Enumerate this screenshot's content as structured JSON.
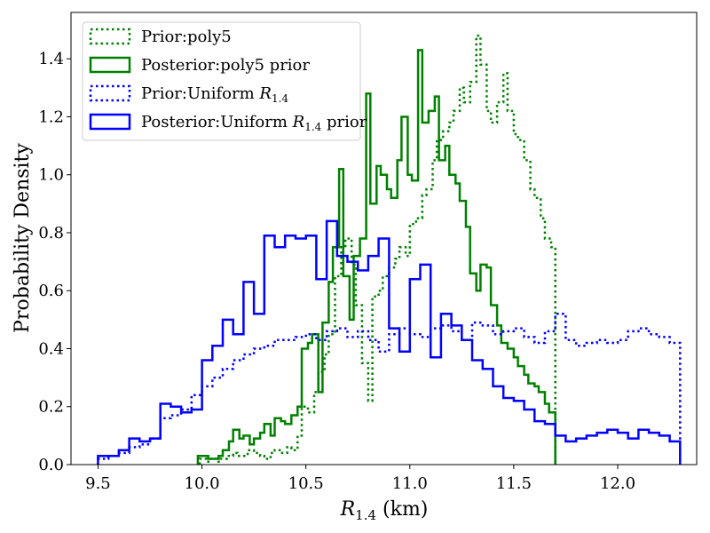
{
  "chart_data": {
    "type": "line",
    "chart_kind": "step histogram",
    "title": "",
    "xlabel": "R1.4 (km)",
    "ylabel": "Probability Density",
    "xlim": [
      9.37,
      12.38
    ],
    "ylim": [
      0.0,
      1.56
    ],
    "x_ticks": [
      9.5,
      10.0,
      10.5,
      11.0,
      11.5,
      12.0
    ],
    "x_tick_labels": [
      "9.5",
      "10.0",
      "10.5",
      "11.0",
      "11.5",
      "12.0"
    ],
    "y_ticks": [
      0.0,
      0.2,
      0.4,
      0.6,
      0.8,
      1.0,
      1.2,
      1.4
    ],
    "y_tick_labels": [
      "0.0",
      "0.2",
      "0.4",
      "0.6",
      "0.8",
      "1.0",
      "1.2",
      "1.4"
    ],
    "grid": false,
    "legend_position": "top-left",
    "series": [
      {
        "name": "Prior:poly5",
        "color": "#008000",
        "line_style": "dotted",
        "bin_edges": [
          9.99,
          10.02,
          10.04,
          10.07,
          10.09,
          10.12,
          10.15,
          10.17,
          10.2,
          10.22,
          10.25,
          10.28,
          10.3,
          10.33,
          10.35,
          10.38,
          10.41,
          10.43,
          10.46,
          10.48,
          10.51,
          10.54,
          10.56,
          10.59,
          10.61,
          10.64,
          10.67,
          10.69,
          10.72,
          10.74,
          10.77,
          10.8,
          10.82,
          10.85,
          10.87,
          10.9,
          10.93,
          10.95,
          10.98,
          11.0,
          11.03,
          11.06,
          11.08,
          11.11,
          11.13,
          11.16,
          11.19,
          11.21,
          11.24,
          11.26,
          11.29,
          11.32,
          11.34,
          11.37,
          11.39,
          11.42,
          11.45,
          11.47,
          11.5,
          11.52,
          11.55,
          11.58,
          11.6,
          11.63,
          11.65,
          11.68,
          11.7
        ],
        "values": [
          0.02,
          0.01,
          0.02,
          0.01,
          0.02,
          0.03,
          0.04,
          0.03,
          0.03,
          0.05,
          0.04,
          0.03,
          0.02,
          0.04,
          0.05,
          0.04,
          0.06,
          0.05,
          0.1,
          0.2,
          0.18,
          0.25,
          0.32,
          0.38,
          0.45,
          0.65,
          0.75,
          0.78,
          0.69,
          0.55,
          0.35,
          0.22,
          0.58,
          0.6,
          0.65,
          0.68,
          0.71,
          0.75,
          0.72,
          0.83,
          0.85,
          0.93,
          0.95,
          1.05,
          1.12,
          1.15,
          1.18,
          1.22,
          1.3,
          1.25,
          1.32,
          1.48,
          1.38,
          1.22,
          1.18,
          1.25,
          1.35,
          1.22,
          1.14,
          1.12,
          1.05,
          0.95,
          0.92,
          0.85,
          0.78,
          0.75
        ]
      },
      {
        "name": "Posterior:poly5 prior",
        "color": "#008000",
        "line_style": "solid",
        "bin_edges": [
          9.98,
          10.03,
          10.08,
          10.1,
          10.13,
          10.15,
          10.18,
          10.2,
          10.23,
          10.25,
          10.28,
          10.3,
          10.33,
          10.35,
          10.38,
          10.4,
          10.43,
          10.46,
          10.48,
          10.51,
          10.53,
          10.56,
          10.58,
          10.61,
          10.63,
          10.66,
          10.68,
          10.71,
          10.73,
          10.76,
          10.79,
          10.81,
          10.84,
          10.86,
          10.89,
          10.91,
          10.94,
          10.96,
          10.99,
          11.01,
          11.04,
          11.06,
          11.09,
          11.12,
          11.14,
          11.17,
          11.19,
          11.22,
          11.24,
          11.27,
          11.29,
          11.32,
          11.34,
          11.37,
          11.39,
          11.42,
          11.44,
          11.47,
          11.5,
          11.52,
          11.55,
          11.57,
          11.6,
          11.62,
          11.65,
          11.67,
          11.7
        ],
        "values": [
          0.03,
          0.02,
          0.03,
          0.05,
          0.08,
          0.12,
          0.09,
          0.1,
          0.07,
          0.09,
          0.11,
          0.14,
          0.1,
          0.16,
          0.15,
          0.14,
          0.17,
          0.2,
          0.4,
          0.42,
          0.45,
          0.25,
          0.49,
          0.63,
          0.75,
          1.02,
          0.65,
          0.5,
          0.72,
          0.78,
          1.28,
          0.9,
          1.03,
          1.0,
          0.95,
          0.92,
          1.05,
          1.2,
          1.0,
          0.98,
          1.43,
          1.18,
          1.22,
          1.27,
          1.05,
          1.1,
          1.0,
          0.97,
          0.91,
          0.82,
          0.66,
          0.6,
          0.69,
          0.68,
          0.55,
          0.48,
          0.42,
          0.4,
          0.37,
          0.34,
          0.31,
          0.28,
          0.27,
          0.25,
          0.21,
          0.18
        ]
      },
      {
        "name": "Prior:Uniform R1.4",
        "color": "#0000ff",
        "line_style": "dotted",
        "bin_edges": [
          9.5,
          9.55,
          9.6,
          9.65,
          9.7,
          9.75,
          9.8,
          9.85,
          9.9,
          9.95,
          10.0,
          10.05,
          10.1,
          10.15,
          10.2,
          10.25,
          10.3,
          10.35,
          10.4,
          10.45,
          10.5,
          10.55,
          10.6,
          10.65,
          10.7,
          10.75,
          10.8,
          10.85,
          10.9,
          10.95,
          11.0,
          11.05,
          11.1,
          11.15,
          11.2,
          11.25,
          11.3,
          11.35,
          11.4,
          11.45,
          11.5,
          11.55,
          11.6,
          11.65,
          11.7,
          11.75,
          11.8,
          11.85,
          11.9,
          11.95,
          12.0,
          12.05,
          12.1,
          12.15,
          12.2,
          12.25,
          12.3
        ],
        "values": [
          0.02,
          0.03,
          0.04,
          0.06,
          0.07,
          0.09,
          0.16,
          0.17,
          0.19,
          0.24,
          0.27,
          0.3,
          0.33,
          0.36,
          0.38,
          0.4,
          0.41,
          0.43,
          0.43,
          0.44,
          0.45,
          0.43,
          0.46,
          0.47,
          0.44,
          0.46,
          0.43,
          0.39,
          0.45,
          0.47,
          0.45,
          0.44,
          0.47,
          0.48,
          0.46,
          0.43,
          0.49,
          0.48,
          0.45,
          0.46,
          0.47,
          0.44,
          0.42,
          0.46,
          0.52,
          0.43,
          0.41,
          0.42,
          0.43,
          0.42,
          0.43,
          0.46,
          0.47,
          0.45,
          0.44,
          0.42
        ]
      },
      {
        "name": "Posterior:Uniform R1.4 prior",
        "color": "#0000ff",
        "line_style": "solid",
        "bin_edges": [
          9.5,
          9.55,
          9.6,
          9.65,
          9.7,
          9.75,
          9.8,
          9.85,
          9.9,
          9.95,
          10.0,
          10.05,
          10.1,
          10.15,
          10.2,
          10.25,
          10.3,
          10.35,
          10.4,
          10.45,
          10.5,
          10.55,
          10.6,
          10.65,
          10.7,
          10.75,
          10.8,
          10.85,
          10.9,
          10.95,
          11.0,
          11.05,
          11.1,
          11.15,
          11.2,
          11.25,
          11.3,
          11.35,
          11.4,
          11.45,
          11.5,
          11.55,
          11.6,
          11.65,
          11.7,
          11.75,
          11.8,
          11.85,
          11.9,
          11.95,
          12.0,
          12.05,
          12.1,
          12.15,
          12.2,
          12.25,
          12.3
        ],
        "values": [
          0.03,
          0.03,
          0.05,
          0.09,
          0.08,
          0.09,
          0.21,
          0.2,
          0.18,
          0.19,
          0.36,
          0.41,
          0.5,
          0.45,
          0.63,
          0.52,
          0.79,
          0.75,
          0.79,
          0.78,
          0.79,
          0.64,
          0.84,
          0.72,
          0.7,
          0.67,
          0.72,
          0.78,
          0.47,
          0.39,
          0.64,
          0.69,
          0.37,
          0.52,
          0.48,
          0.43,
          0.36,
          0.33,
          0.27,
          0.23,
          0.22,
          0.19,
          0.15,
          0.14,
          0.1,
          0.08,
          0.09,
          0.1,
          0.11,
          0.12,
          0.11,
          0.09,
          0.12,
          0.11,
          0.1,
          0.08
        ]
      }
    ]
  },
  "legend": {
    "items": [
      {
        "prefix": "Prior:poly5",
        "math": "",
        "sub": "",
        "suffix": ""
      },
      {
        "prefix": "Posterior:poly5 prior",
        "math": "",
        "sub": "",
        "suffix": ""
      },
      {
        "prefix": "Prior:Uniform ",
        "math": "R",
        "sub": "1.4",
        "suffix": ""
      },
      {
        "prefix": "Posterior:Uniform ",
        "math": "R",
        "sub": "1.4",
        "suffix": " prior"
      }
    ]
  },
  "xaxis_label": {
    "math": "R",
    "sub": "1.4",
    "suffix": " (km)"
  }
}
